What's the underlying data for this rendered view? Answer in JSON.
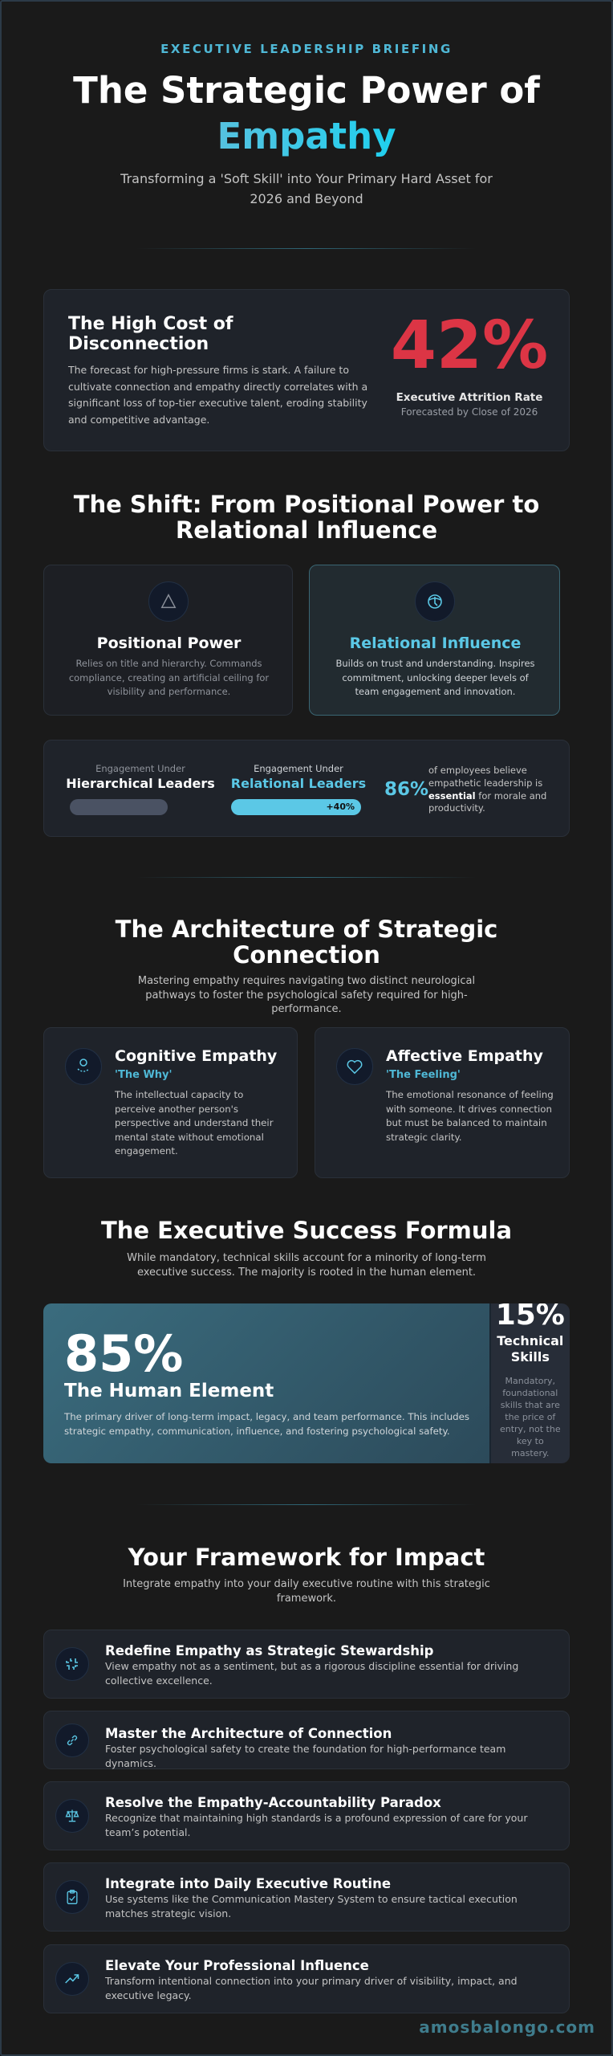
{
  "header": {
    "eyebrow": "EXECUTIVE LEADERSHIP BRIEFING",
    "title_line1": "The Strategic Power of",
    "title_accent": "Empathy",
    "subtitle": "Transforming a 'Soft Skill' into Your Primary Hard Asset for 2026 and Beyond"
  },
  "cost": {
    "title": "The High Cost of Disconnection",
    "body": "The forecast for high-pressure firms is stark. A failure to cultivate connection and empathy directly correlates with a significant loss of top-tier executive talent, eroding stability and competitive advantage.",
    "stat": "42%",
    "stat_label": "Executive Attrition Rate",
    "stat_sub": "Forecasted by Close of 2026",
    "stat_color": "#dc3545"
  },
  "shift": {
    "title": "The Shift: From Positional Power to Relational Influence",
    "cards": [
      {
        "icon": "triangle-icon",
        "title": "Positional Power",
        "body": "Relies on title and hierarchy. Commands compliance, creating an artificial ceiling for visibility and performance."
      },
      {
        "icon": "brain-icon",
        "title": "Relational Influence",
        "body": "Builds on trust and understanding. Inspires commitment, unlocking deeper levels of team engagement and innovation."
      }
    ],
    "engagement": {
      "left_pre": "Engagement Under",
      "left_label": "Hierarchical Leaders",
      "right_pre": "Engagement Under",
      "right_label": "Relational Leaders",
      "right_delta": "+40%",
      "stat": "86%",
      "stat_text_1": "of employees believe empathetic leadership is",
      "stat_text_bold": "essential",
      "stat_text_2": "for morale and productivity."
    }
  },
  "architecture": {
    "title": "The Architecture of Strategic Connection",
    "subtitle": "Mastering empathy requires navigating two distinct neurological pathways to foster the psychological safety required for high-performance.",
    "cards": [
      {
        "icon": "person-icon",
        "title": "Cognitive Empathy",
        "tag": "'The Why'",
        "body": "The intellectual capacity to perceive another person's perspective and understand their mental state without emotional engagement."
      },
      {
        "icon": "heart-icon",
        "title": "Affective Empathy",
        "tag": "'The Feeling'",
        "body": "The emotional resonance of feeling with someone. It drives connection but must be balanced to maintain strategic clarity."
      }
    ]
  },
  "formula": {
    "title": "The Executive Success Formula",
    "subtitle": "While mandatory, technical skills account for a minority of long-term executive success. The majority is rooted in the human element.",
    "human": {
      "value": 85,
      "stat": "85%",
      "title": "The Human Element",
      "body": "The primary driver of long-term impact, legacy, and team performance. This includes strategic empathy, communication, influence, and fostering psychological safety."
    },
    "technical": {
      "value": 15,
      "stat": "15%",
      "title": "Technical Skills",
      "body": "Mandatory, foundational skills that are the price of entry, not the key to mastery."
    }
  },
  "framework": {
    "title": "Your Framework for Impact",
    "subtitle": "Integrate empathy into your daily executive routine with this strategic framework.",
    "items": [
      {
        "icon": "focus-corners-icon",
        "title": "Redefine Empathy as Strategic Stewardship",
        "body": "View empathy not as a sentiment, but as a rigorous discipline essential for driving collective excellence."
      },
      {
        "icon": "link-icon",
        "title": "Master the Architecture of Connection",
        "body": "Foster psychological safety to create the foundation for high-performance team dynamics."
      },
      {
        "icon": "scale-icon",
        "title": "Resolve the Empathy-Accountability Paradox",
        "body": "Recognize that maintaining high standards is a profound expression of care for your team’s potential."
      },
      {
        "icon": "clipboard-check-icon",
        "title": "Integrate into Daily Executive Routine",
        "body": "Use systems like the Communication Mastery System to ensure tactical execution matches strategic vision."
      },
      {
        "icon": "trending-up-icon",
        "title": "Elevate Your Professional Influence",
        "body": "Transform intentional connection into your primary driver of visibility, impact, and executive legacy."
      }
    ]
  },
  "footer": {
    "brand": "amosbalongo.com"
  },
  "colors": {
    "accent": "#4fb8d6",
    "background": "#1a1a1a",
    "card": "#1f232a",
    "alert": "#dc3545"
  }
}
